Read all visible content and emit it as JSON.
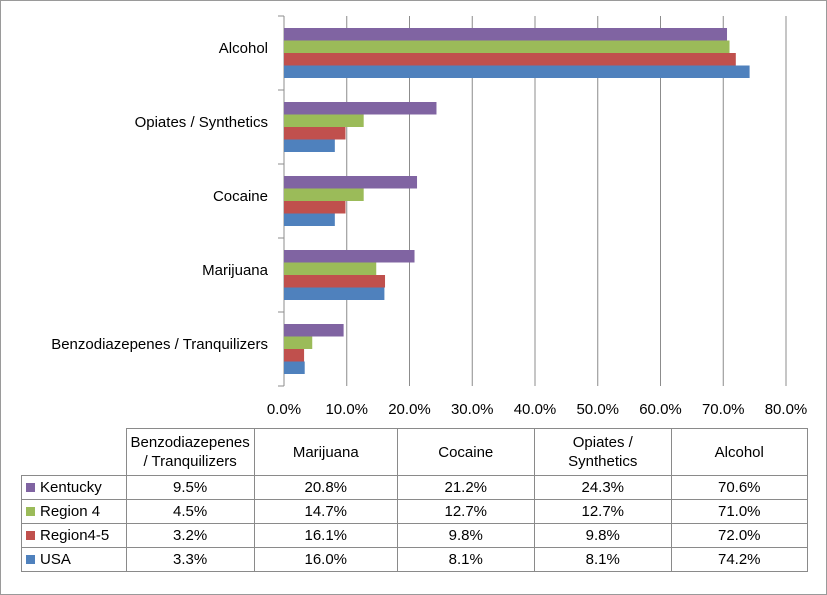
{
  "chart_data": {
    "type": "bar",
    "orientation": "horizontal",
    "categories": [
      "Benzodiazepenes / Tranquilizers",
      "Marijuana",
      "Cocaine",
      "Opiates / Synthetics",
      "Alcohol"
    ],
    "series": [
      {
        "name": "Kentucky",
        "color": "#8064a2",
        "values": [
          9.5,
          20.8,
          21.2,
          24.3,
          70.6
        ],
        "value_labels": [
          "9.5%",
          "20.8%",
          "21.2%",
          "24.3%",
          "70.6%"
        ]
      },
      {
        "name": "Region 4",
        "color": "#9bbb59",
        "values": [
          4.5,
          14.7,
          12.7,
          12.7,
          71.0
        ],
        "value_labels": [
          "4.5%",
          "14.7%",
          "12.7%",
          "12.7%",
          "71.0%"
        ]
      },
      {
        "name": "Region4-5",
        "color": "#c0504d",
        "values": [
          3.2,
          16.1,
          9.8,
          9.8,
          72.0
        ],
        "value_labels": [
          "3.2%",
          "16.1%",
          "9.8%",
          "9.8%",
          "72.0%"
        ]
      },
      {
        "name": "USA",
        "color": "#4f81bd",
        "values": [
          3.3,
          16.0,
          8.1,
          8.1,
          74.2
        ],
        "value_labels": [
          "3.3%",
          "16.0%",
          "8.1%",
          "8.1%",
          "74.2%"
        ]
      }
    ],
    "xlim": [
      0,
      80
    ],
    "xticks": [
      {
        "value": 0,
        "label": "0.0%"
      },
      {
        "value": 10,
        "label": "10.0%"
      },
      {
        "value": 20,
        "label": "20.0%"
      },
      {
        "value": 30,
        "label": "30.0%"
      },
      {
        "value": 40,
        "label": "40.0%"
      },
      {
        "value": 50,
        "label": "50.0%"
      },
      {
        "value": 60,
        "label": "60.0%"
      },
      {
        "value": 70,
        "label": "70.0%"
      },
      {
        "value": 80,
        "label": "80.0%"
      }
    ],
    "grid": true,
    "data_table": true
  }
}
